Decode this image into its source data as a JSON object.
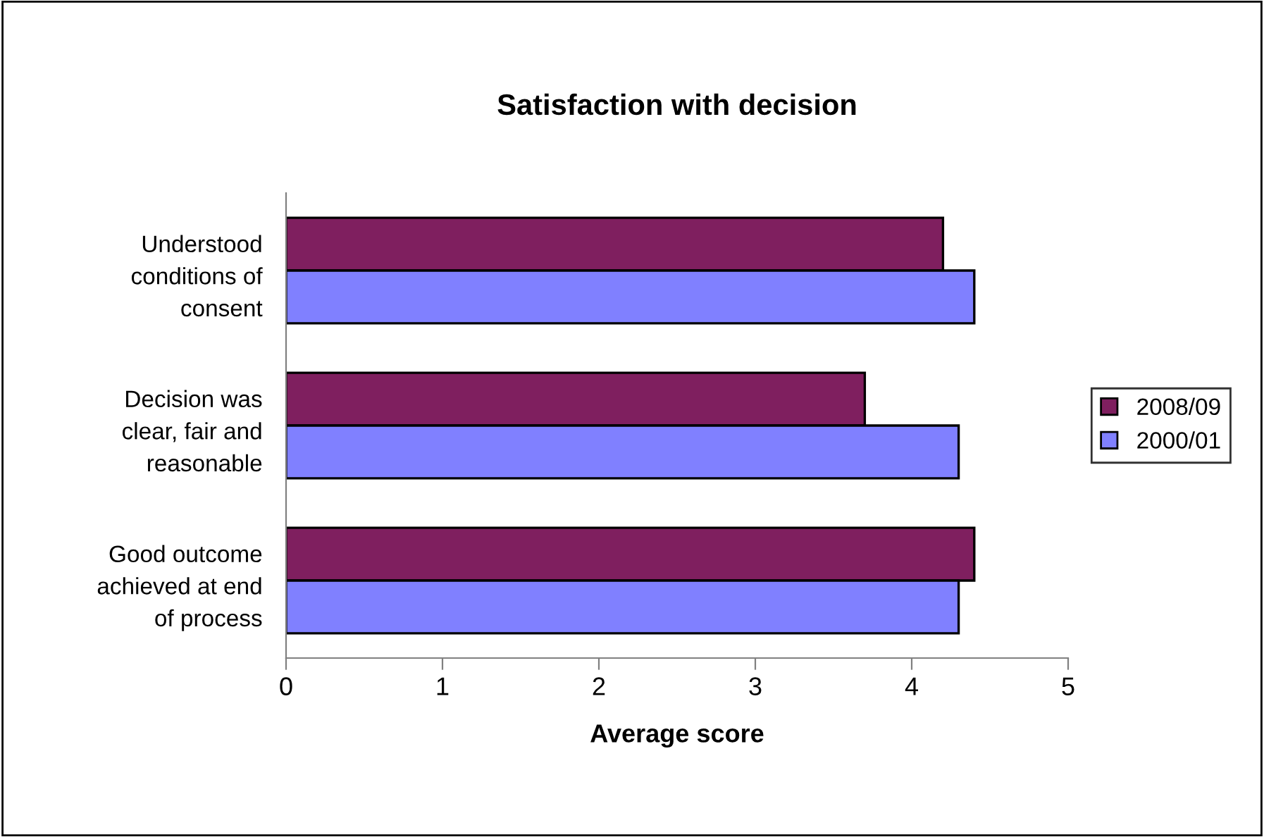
{
  "chart_data": {
    "type": "bar",
    "orientation": "horizontal",
    "title": "Satisfaction with decision",
    "xlabel": "Average score",
    "categories": [
      "Understood\nconditions of\nconsent",
      "Decision was\nclear, fair and\nreasonable",
      "Good outcome\nachieved at end\nof process"
    ],
    "series": [
      {
        "name": "2008/09",
        "color": "#7f1f5f",
        "values": [
          4.2,
          3.7,
          4.4
        ]
      },
      {
        "name": "2000/01",
        "color": "#8080ff",
        "values": [
          4.4,
          4.3,
          4.3
        ]
      }
    ],
    "xlim": [
      0,
      5
    ],
    "xticks": [
      0,
      1,
      2,
      3,
      4,
      5
    ],
    "grid": false,
    "legend": "right"
  }
}
